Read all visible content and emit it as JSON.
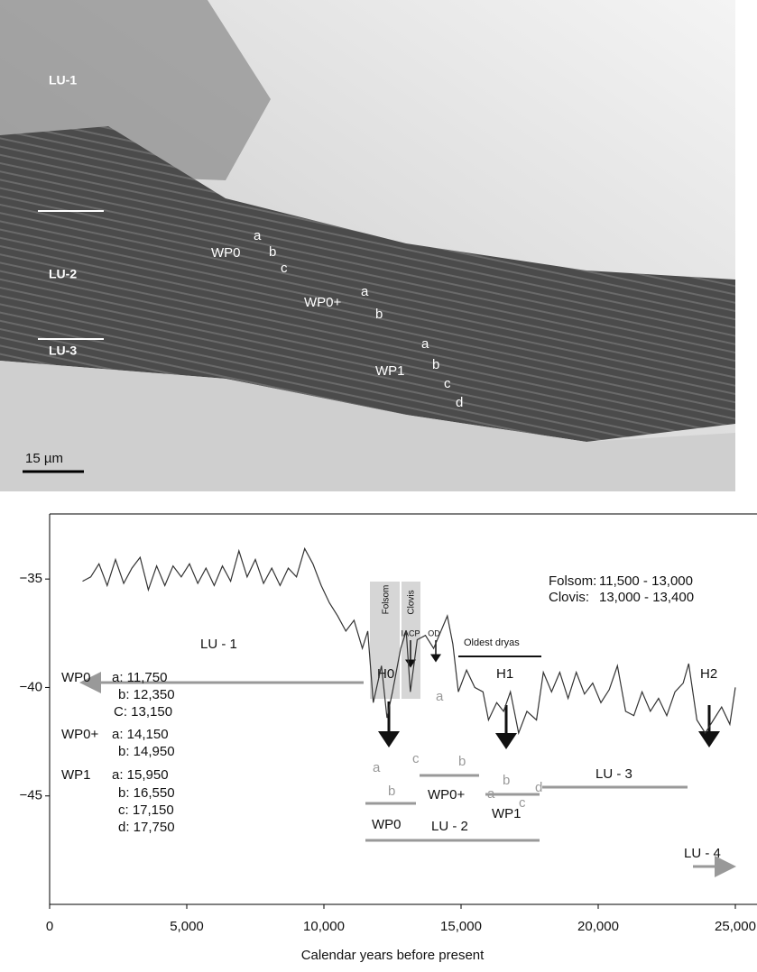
{
  "micrograph": {
    "labels": [
      "LU-1",
      "LU-2",
      "LU-3",
      "WP0",
      "a",
      "b",
      "c",
      "WP0+",
      "a",
      "b",
      "WP1",
      "a",
      "b",
      "c",
      "d"
    ],
    "scale_bar": "15 µm"
  },
  "chart_data": {
    "type": "line",
    "x_label": "Calendar years before present",
    "xlim": [
      0,
      25000
    ],
    "ylim": [
      -50,
      -32
    ],
    "xticks": [
      0,
      {
        "value": 5000,
        "label": "5,000"
      },
      {
        "value": 10000,
        "label": "10,000"
      },
      {
        "value": 15000,
        "label": "15,000"
      },
      {
        "value": 20000,
        "label": "20,000"
      },
      {
        "value": 25000,
        "label": "25,000"
      }
    ],
    "yticks": [
      {
        "value": -35,
        "label": "−35"
      },
      {
        "value": -40,
        "label": "−40"
      },
      {
        "value": -45,
        "label": "−45"
      }
    ],
    "color": "#333333",
    "x": [
      1200,
      1500,
      1800,
      2100,
      2400,
      2700,
      3000,
      3300,
      3600,
      3900,
      4200,
      4500,
      4800,
      5100,
      5400,
      5700,
      6000,
      6300,
      6600,
      6900,
      7200,
      7500,
      7800,
      8100,
      8400,
      8700,
      9000,
      9300,
      9600,
      9900,
      10200,
      10500,
      10800,
      11100,
      11400,
      11600,
      11800,
      12100,
      12300,
      12500,
      12800,
      13000,
      13150,
      13400,
      13700,
      14000,
      14200,
      14500,
      14700,
      14900,
      15200,
      15500,
      15800,
      16000,
      16300,
      16550,
      16800,
      17100,
      17400,
      17750,
      18000,
      18300,
      18600,
      18900,
      19200,
      19500,
      19800,
      20100,
      20400,
      20700,
      21000,
      21300,
      21600,
      21900,
      22200,
      22500,
      22800,
      23100,
      23300,
      23600,
      23900,
      24200,
      24500,
      24800,
      25000
    ],
    "values": [
      -35.1,
      -34.9,
      -34.3,
      -35.3,
      -34.1,
      -35.2,
      -34.5,
      -34.0,
      -35.5,
      -34.4,
      -35.3,
      -34.4,
      -34.9,
      -34.3,
      -35.2,
      -34.5,
      -35.3,
      -34.4,
      -35.1,
      -33.7,
      -34.9,
      -34.1,
      -35.2,
      -34.5,
      -35.3,
      -34.5,
      -34.9,
      -33.6,
      -34.3,
      -35.3,
      -36.1,
      -36.7,
      -37.4,
      -36.9,
      -38.2,
      -37.4,
      -40.7,
      -39.0,
      -41.4,
      -40.2,
      -38.2,
      -37.4,
      -40.2,
      -37.8,
      -37.6,
      -38.2,
      -37.6,
      -36.7,
      -38.0,
      -40.2,
      -39.2,
      -40.0,
      -40.2,
      -41.5,
      -40.7,
      -41.1,
      -40.2,
      -42.1,
      -41.1,
      -41.5,
      -39.3,
      -40.2,
      -39.3,
      -40.5,
      -39.3,
      -40.3,
      -39.8,
      -40.7,
      -40.1,
      -39.0,
      -41.1,
      -41.3,
      -40.2,
      -41.1,
      -40.5,
      -41.3,
      -40.2,
      -39.8,
      -38.9,
      -41.5,
      -42.1,
      -41.5,
      -40.9,
      -41.7,
      -40.0
    ],
    "periods": [
      "Folsom:",
      "11,500 - 13,000",
      "Clovis:",
      "13,000 - 13,400"
    ],
    "annotations": [
      "Folsom",
      "Clovis",
      "IACP",
      "OD",
      "Oldest dryas",
      "H0",
      "H1",
      "H2",
      "LU - 1",
      "a",
      "b",
      "c",
      "a",
      "b",
      "a",
      "b",
      "c",
      "d",
      "WP0",
      "WP0+",
      "WP1",
      "LU - 2",
      "LU - 3",
      "LU - 4"
    ],
    "wp_dates": [
      "WP0",
      "a: 11,750",
      "b: 12,350",
      "C: 13,150",
      "WP0+",
      "a: 14,150",
      "b: 14,950",
      "WP1",
      "a: 15,950",
      "b: 16,550",
      "c: 17,150",
      "d: 17,750"
    ]
  }
}
